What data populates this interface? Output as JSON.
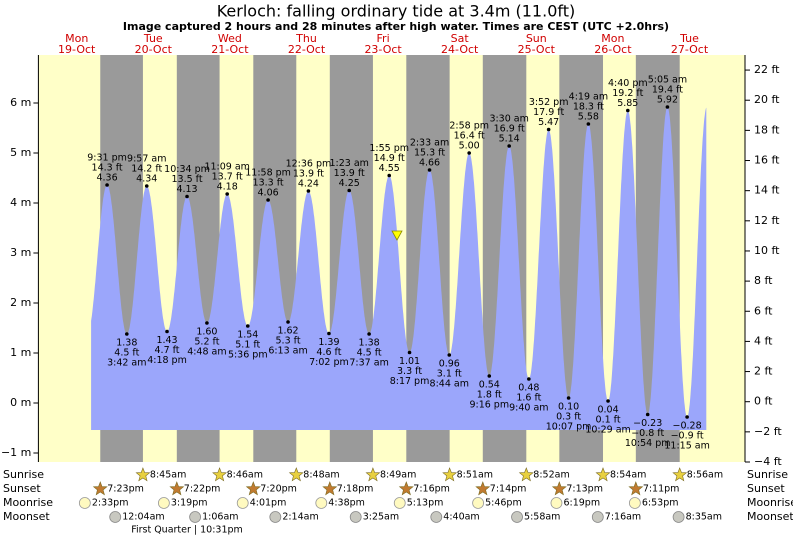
{
  "chart_data": {
    "type": "tide",
    "title": "Kerloch: falling  ordinary tide at 3.4m (11.0ft)",
    "subtitle": "Image captured 2 hours and 28 minutes after high water. Times are CEST (UTC +2.0hrs)",
    "days": [
      "Mon",
      "Tue",
      "Wed",
      "Thu",
      "Fri",
      "Sat",
      "Sun",
      "Mon",
      "Tue"
    ],
    "dates": [
      "19-Oct",
      "20-Oct",
      "21-Oct",
      "22-Oct",
      "23-Oct",
      "24-Oct",
      "25-Oct",
      "26-Oct",
      "27-Oct"
    ],
    "extremes": {
      "times": [
        "9:31 pm",
        "3:42 am",
        "9:57 am",
        "4:18 pm",
        "10:34 pm",
        "4:48 am",
        "11:09 am",
        "5:36 pm",
        "11:58 pm",
        "6:13 am",
        "12:36 pm",
        "7:02 pm",
        "1:23 am",
        "7:37 am",
        "1:55 pm",
        "8:17 pm",
        "2:33 am",
        "8:44 am",
        "2:58 pm",
        "9:16 pm",
        "3:30 am",
        "9:40 am",
        "3:52 pm",
        "10:07 pm",
        "4:19 am",
        "10:29 am",
        "4:40 pm",
        "10:54 pm",
        "5:05 am",
        "11:15 am"
      ],
      "values": [
        4.36,
        1.38,
        4.34,
        1.43,
        4.13,
        1.6,
        4.18,
        1.54,
        4.06,
        1.62,
        4.24,
        1.39,
        4.25,
        1.38,
        4.55,
        1.01,
        4.66,
        0.96,
        5.0,
        0.54,
        5.14,
        0.48,
        5.47,
        0.1,
        5.58,
        0.04,
        5.85,
        -0.23,
        5.92,
        -0.28
      ],
      "value_labels": [
        "4.36",
        "1.38",
        "4.34",
        "1.43",
        "4.13",
        "1.60",
        "4.18",
        "1.54",
        "4.06",
        "1.62",
        "4.24",
        "1.39",
        "4.25",
        "1.38",
        "4.55",
        "1.01",
        "4.66",
        "0.96",
        "5.00",
        "0.54",
        "5.14",
        "0.48",
        "5.47",
        "0.10",
        "5.58",
        "0.04",
        "5.85",
        "−0.23",
        "5.92",
        "−0.28"
      ],
      "ft_labels": [
        "14.3 ft",
        "4.5 ft",
        "14.2 ft",
        "4.7 ft",
        "13.5 ft",
        "5.2 ft",
        "13.7 ft",
        "5.1 ft",
        "13.3 ft",
        "5.3 ft",
        "13.9 ft",
        "4.6 ft",
        "13.9 ft",
        "4.5 ft",
        "14.9 ft",
        "3.3 ft",
        "15.3 ft",
        "3.1 ft",
        "16.4 ft",
        "1.8 ft",
        "16.9 ft",
        "1.6 ft",
        "17.9 ft",
        "0.3 ft",
        "18.3 ft",
        "0.1 ft",
        "19.2 ft",
        "−0.8 ft",
        "19.4 ft",
        "−0.9 ft"
      ]
    },
    "color": "#9ba6fb",
    "ylim": [
      -1.18,
      6.96
    ],
    "yticks": [
      {
        "value": -1,
        "label": "−1 m"
      },
      {
        "value": 0,
        "label": "0 m"
      },
      {
        "value": 1,
        "label": "1 m"
      },
      {
        "value": 2,
        "label": "2 m"
      },
      {
        "value": 3,
        "label": "3 m"
      },
      {
        "value": 4,
        "label": "4 m"
      },
      {
        "value": 5,
        "label": "5 m"
      },
      {
        "value": 6,
        "label": "6 m"
      }
    ],
    "y2lim": [
      -4,
      23
    ],
    "y2ticks": [
      {
        "value": -4,
        "label": "−4 ft"
      },
      {
        "value": -2,
        "label": "−2 ft"
      },
      {
        "value": 0,
        "label": "0 ft"
      },
      {
        "value": 2,
        "label": "2 ft"
      },
      {
        "value": 4,
        "label": "4 ft"
      },
      {
        "value": 6,
        "label": "6 ft"
      },
      {
        "value": 8,
        "label": "8 ft"
      },
      {
        "value": 10,
        "label": "10 ft"
      },
      {
        "value": 12,
        "label": "12 ft"
      },
      {
        "value": 14,
        "label": "14 ft"
      },
      {
        "value": 16,
        "label": "16 ft"
      },
      {
        "value": 18,
        "label": "18 ft"
      },
      {
        "value": 20,
        "label": "20 ft"
      },
      {
        "value": 22,
        "label": "22 ft"
      }
    ],
    "rows": [
      {
        "name": "Sunrise",
        "times": [
          null,
          "8:45am",
          "8:46am",
          "8:48am",
          "8:49am",
          "8:51am",
          "8:52am",
          "8:54am",
          "8:56am"
        ]
      },
      {
        "name": "Sunset",
        "times": [
          "7:23pm",
          "7:22pm",
          "7:20pm",
          "7:18pm",
          "7:16pm",
          "7:14pm",
          "7:13pm",
          "7:11pm",
          null
        ]
      },
      {
        "name": "Moonrise",
        "times": [
          "2:33pm",
          "3:19pm",
          "4:01pm",
          "4:38pm",
          "5:13pm",
          "5:46pm",
          "6:19pm",
          "6:53pm",
          null
        ]
      },
      {
        "name": "Moonset",
        "times": [
          null,
          "12:04am",
          "1:06am",
          "2:14am",
          "3:25am",
          "4:40am",
          "5:58am",
          "7:16am",
          "8:35am"
        ]
      }
    ],
    "moon_phase": "First Quarter | 10:31pm"
  }
}
